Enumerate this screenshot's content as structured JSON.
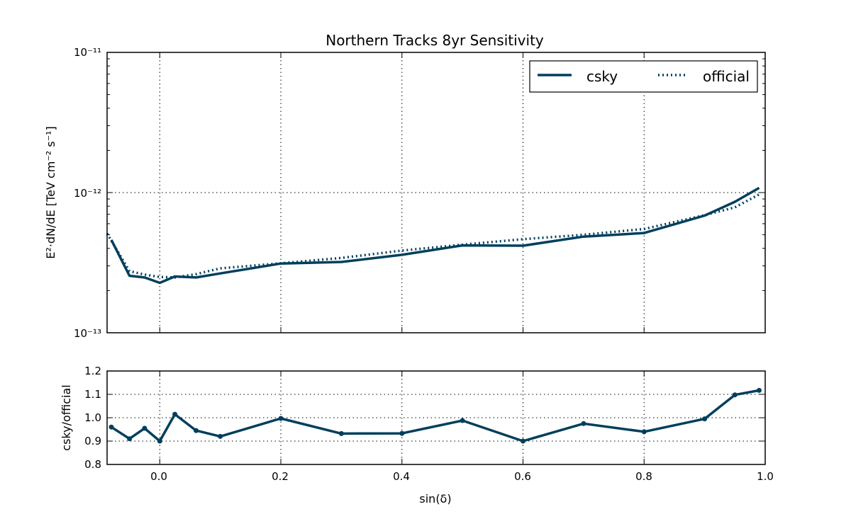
{
  "color": "#003f5c",
  "chart_data": [
    {
      "type": "line",
      "title": "Northern Tracks 8yr Sensitivity",
      "ylabel": "E²·dN/dE [TeV cm⁻² s⁻¹]",
      "yscale": "log",
      "ylim": [
        1e-13,
        1e-11
      ],
      "xlim": [
        -0.087,
        1.0
      ],
      "ytick_labels": [
        "10⁻¹¹",
        "10⁻¹²",
        "10⁻¹³"
      ],
      "grid": true,
      "legend_placement": "top-right",
      "series": [
        {
          "name": "csky",
          "style": "solid",
          "x": [
            -0.08,
            -0.05,
            -0.025,
            0.0,
            0.025,
            0.06,
            0.1,
            0.2,
            0.3,
            0.4,
            0.5,
            0.6,
            0.7,
            0.8,
            0.9,
            0.95,
            0.99
          ],
          "y": [
            4.6e-13,
            2.55e-13,
            2.48e-13,
            2.27e-13,
            2.52e-13,
            2.48e-13,
            2.65e-13,
            3.12e-13,
            3.2e-13,
            3.6e-13,
            4.2e-13,
            4.18e-13,
            4.85e-13,
            5.15e-13,
            6.85e-13,
            8.6e-13,
            1.08e-12
          ]
        },
        {
          "name": "official",
          "style": "dotted",
          "x": [
            -0.087,
            -0.05,
            -0.025,
            0.0,
            0.025,
            0.06,
            0.1,
            0.2,
            0.3,
            0.4,
            0.5,
            0.6,
            0.7,
            0.8,
            0.9,
            0.95,
            0.99
          ],
          "y": [
            5.1e-13,
            2.75e-13,
            2.6e-13,
            2.5e-13,
            2.48e-13,
            2.62e-13,
            2.88e-13,
            3.13e-13,
            3.42e-13,
            3.86e-13,
            4.25e-13,
            4.65e-13,
            5e-13,
            5.5e-13,
            6.9e-13,
            7.85e-13,
            9.7e-13
          ]
        }
      ]
    },
    {
      "type": "line",
      "xlabel": "sin(δ)",
      "ylabel": "csky/official",
      "ylim": [
        0.8,
        1.2
      ],
      "xlim": [
        -0.087,
        1.0
      ],
      "yticks": [
        "1.2",
        "1.1",
        "1.0",
        "0.9",
        "0.8"
      ],
      "xticks": [
        "0.0",
        "0.2",
        "0.4",
        "0.6",
        "0.8",
        "1.0"
      ],
      "grid": true,
      "series": [
        {
          "markers": true,
          "x": [
            -0.08,
            -0.05,
            -0.025,
            0.0,
            0.025,
            0.06,
            0.1,
            0.2,
            0.3,
            0.4,
            0.5,
            0.6,
            0.7,
            0.8,
            0.9,
            0.95,
            0.99
          ],
          "y": [
            0.96,
            0.91,
            0.955,
            0.9,
            1.015,
            0.945,
            0.92,
            0.997,
            0.932,
            0.933,
            0.988,
            0.9,
            0.975,
            0.94,
            0.995,
            1.098,
            1.117
          ]
        }
      ]
    }
  ]
}
